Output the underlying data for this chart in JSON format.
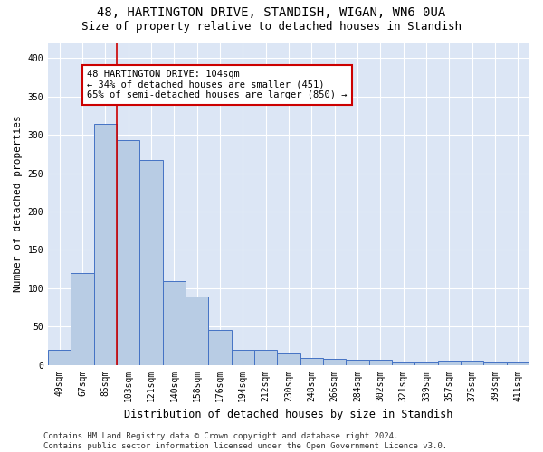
{
  "title1": "48, HARTINGTON DRIVE, STANDISH, WIGAN, WN6 0UA",
  "title2": "Size of property relative to detached houses in Standish",
  "xlabel": "Distribution of detached houses by size in Standish",
  "ylabel": "Number of detached properties",
  "categories": [
    "49sqm",
    "67sqm",
    "85sqm",
    "103sqm",
    "121sqm",
    "140sqm",
    "158sqm",
    "176sqm",
    "194sqm",
    "212sqm",
    "230sqm",
    "248sqm",
    "266sqm",
    "284sqm",
    "302sqm",
    "321sqm",
    "339sqm",
    "357sqm",
    "375sqm",
    "393sqm",
    "411sqm"
  ],
  "values": [
    19,
    120,
    315,
    293,
    267,
    109,
    89,
    45,
    20,
    20,
    15,
    9,
    8,
    7,
    6,
    4,
    4,
    5,
    5,
    4,
    4
  ],
  "bar_color": "#b8cce4",
  "bar_edge_color": "#4472c4",
  "vline_x": 2.5,
  "vline_color": "#cc0000",
  "annotation_text": "48 HARTINGTON DRIVE: 104sqm\n← 34% of detached houses are smaller (451)\n65% of semi-detached houses are larger (850) →",
  "annotation_box_color": "white",
  "annotation_box_edge_color": "#cc0000",
  "ylim": [
    0,
    420
  ],
  "yticks": [
    0,
    50,
    100,
    150,
    200,
    250,
    300,
    350,
    400
  ],
  "background_color": "#dce6f5",
  "footer_text": "Contains HM Land Registry data © Crown copyright and database right 2024.\nContains public sector information licensed under the Open Government Licence v3.0.",
  "title1_fontsize": 10,
  "title2_fontsize": 9,
  "xlabel_fontsize": 8.5,
  "ylabel_fontsize": 8,
  "annotation_fontsize": 7.5,
  "footer_fontsize": 6.5,
  "tick_fontsize": 7
}
